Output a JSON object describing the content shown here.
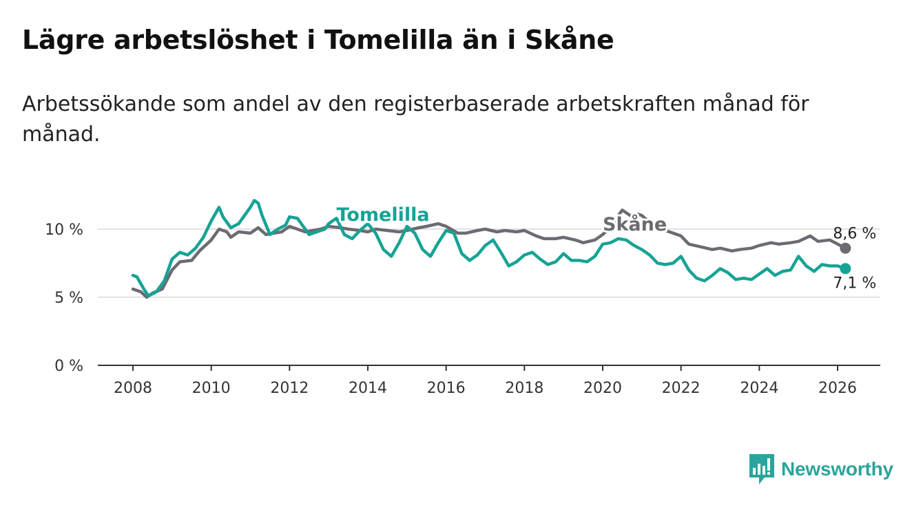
{
  "title": "Lägre arbetslöshet i Tomelilla än i Skåne",
  "subtitle": "Arbetssökande som andel av den registerbaserade arbetskraften månad för månad.",
  "brand": {
    "name": "Newsworthy",
    "icon": "bar-chart-logo-icon",
    "color": "#2aa59b"
  },
  "chart_data": {
    "type": "line",
    "title": "Lägre arbetslöshet i Tomelilla än i Skåne",
    "xlabel": "",
    "ylabel": "",
    "xlim": [
      2007,
      2027.1
    ],
    "ylim": [
      0,
      12.6
    ],
    "x_ticks": [
      2008,
      2010,
      2012,
      2014,
      2016,
      2018,
      2020,
      2022,
      2024,
      2026
    ],
    "x_tick_labels": [
      "2008",
      "2010",
      "2012",
      "2014",
      "2016",
      "2018",
      "2020",
      "2022",
      "2024",
      "2026"
    ],
    "y_ticks": [
      0,
      5,
      10
    ],
    "y_tick_labels": [
      "0 %",
      "5 %",
      "10 %"
    ],
    "grid": true,
    "series": [
      {
        "name": "Skåne",
        "color": "#6d6a72",
        "label_at": [
          2020.0,
          9.9
        ],
        "end_label": "8,6 %",
        "x": [
          2008.0,
          2008.2,
          2008.35,
          2008.5,
          2008.75,
          2009.0,
          2009.2,
          2009.5,
          2009.7,
          2010.0,
          2010.2,
          2010.4,
          2010.5,
          2010.7,
          2011.0,
          2011.2,
          2011.4,
          2011.6,
          2011.8,
          2012.0,
          2012.2,
          2012.4,
          2012.6,
          2012.8,
          2013.0,
          2013.3,
          2013.5,
          2013.8,
          2014.0,
          2014.2,
          2014.5,
          2014.8,
          2015.0,
          2015.3,
          2015.5,
          2015.8,
          2016.0,
          2016.3,
          2016.5,
          2016.8,
          2017.0,
          2017.3,
          2017.5,
          2017.8,
          2018.0,
          2018.3,
          2018.5,
          2018.8,
          2019.0,
          2019.3,
          2019.5,
          2019.8,
          2020.0,
          2020.25,
          2020.4,
          2020.5,
          2020.7,
          2020.9,
          2021.0,
          2021.2,
          2021.5,
          2021.8,
          2022.0,
          2022.2,
          2022.5,
          2022.8,
          2023.0,
          2023.3,
          2023.5,
          2023.8,
          2024.0,
          2024.3,
          2024.5,
          2024.8,
          2025.0,
          2025.3,
          2025.5,
          2025.8,
          2026.0,
          2026.2
        ],
        "values": [
          5.6,
          5.4,
          5.0,
          5.3,
          5.6,
          7.0,
          7.6,
          7.7,
          8.4,
          9.2,
          10.0,
          9.8,
          9.4,
          9.8,
          9.7,
          10.1,
          9.6,
          9.7,
          9.8,
          10.2,
          10.0,
          9.8,
          9.9,
          10.0,
          10.2,
          10.1,
          10.0,
          9.9,
          9.8,
          10.0,
          9.9,
          9.8,
          9.9,
          10.1,
          10.2,
          10.4,
          10.2,
          9.7,
          9.7,
          9.9,
          10.0,
          9.8,
          9.9,
          9.8,
          9.9,
          9.5,
          9.3,
          9.3,
          9.4,
          9.2,
          9.0,
          9.2,
          9.6,
          10.3,
          11.0,
          11.4,
          11.0,
          11.1,
          11.0,
          10.5,
          10.0,
          9.7,
          9.5,
          8.9,
          8.7,
          8.5,
          8.6,
          8.4,
          8.5,
          8.6,
          8.8,
          9.0,
          8.9,
          9.0,
          9.1,
          9.5,
          9.1,
          9.2,
          8.9,
          8.6
        ]
      },
      {
        "name": "Tomelilla",
        "color": "#16a395",
        "label_at": [
          2013.2,
          10.6
        ],
        "end_label": "7,1 %",
        "x": [
          2008.0,
          2008.1,
          2008.3,
          2008.4,
          2008.6,
          2008.8,
          2009.0,
          2009.2,
          2009.4,
          2009.6,
          2009.8,
          2010.0,
          2010.2,
          2010.3,
          2010.5,
          2010.7,
          2010.9,
          2011.0,
          2011.1,
          2011.2,
          2011.3,
          2011.5,
          2011.7,
          2011.9,
          2012.0,
          2012.2,
          2012.4,
          2012.5,
          2012.7,
          2012.9,
          2013.0,
          2013.2,
          2013.4,
          2013.6,
          2013.8,
          2014.0,
          2014.2,
          2014.4,
          2014.6,
          2014.8,
          2015.0,
          2015.2,
          2015.4,
          2015.6,
          2015.8,
          2016.0,
          2016.2,
          2016.4,
          2016.6,
          2016.8,
          2017.0,
          2017.2,
          2017.4,
          2017.6,
          2017.8,
          2018.0,
          2018.2,
          2018.4,
          2018.6,
          2018.8,
          2019.0,
          2019.2,
          2019.4,
          2019.6,
          2019.8,
          2020.0,
          2020.2,
          2020.4,
          2020.6,
          2020.8,
          2021.0,
          2021.2,
          2021.4,
          2021.6,
          2021.8,
          2022.0,
          2022.2,
          2022.4,
          2022.6,
          2022.8,
          2023.0,
          2023.2,
          2023.4,
          2023.6,
          2023.8,
          2024.0,
          2024.2,
          2024.4,
          2024.6,
          2024.8,
          2025.0,
          2025.2,
          2025.4,
          2025.6,
          2025.8,
          2026.0,
          2026.2
        ],
        "values": [
          6.6,
          6.5,
          5.5,
          5.1,
          5.4,
          6.2,
          7.8,
          8.3,
          8.1,
          8.6,
          9.4,
          10.6,
          11.6,
          10.9,
          10.1,
          10.4,
          11.2,
          11.6,
          12.1,
          11.9,
          11.0,
          9.6,
          10.0,
          10.3,
          10.9,
          10.8,
          10.0,
          9.6,
          9.8,
          10.0,
          10.4,
          10.8,
          9.6,
          9.3,
          9.9,
          10.4,
          9.7,
          8.5,
          8.0,
          9.0,
          10.2,
          9.7,
          8.5,
          8.0,
          9.0,
          9.9,
          9.7,
          8.2,
          7.7,
          8.1,
          8.8,
          9.2,
          8.3,
          7.3,
          7.6,
          8.1,
          8.3,
          7.8,
          7.4,
          7.6,
          8.2,
          7.7,
          7.7,
          7.6,
          8.0,
          8.9,
          9.0,
          9.3,
          9.2,
          8.8,
          8.5,
          8.1,
          7.5,
          7.4,
          7.5,
          8.0,
          7.0,
          6.4,
          6.2,
          6.6,
          7.1,
          6.8,
          6.3,
          6.4,
          6.3,
          6.7,
          7.1,
          6.6,
          6.9,
          7.0,
          8.0,
          7.3,
          6.9,
          7.4,
          7.3,
          7.3,
          7.1
        ]
      }
    ]
  }
}
